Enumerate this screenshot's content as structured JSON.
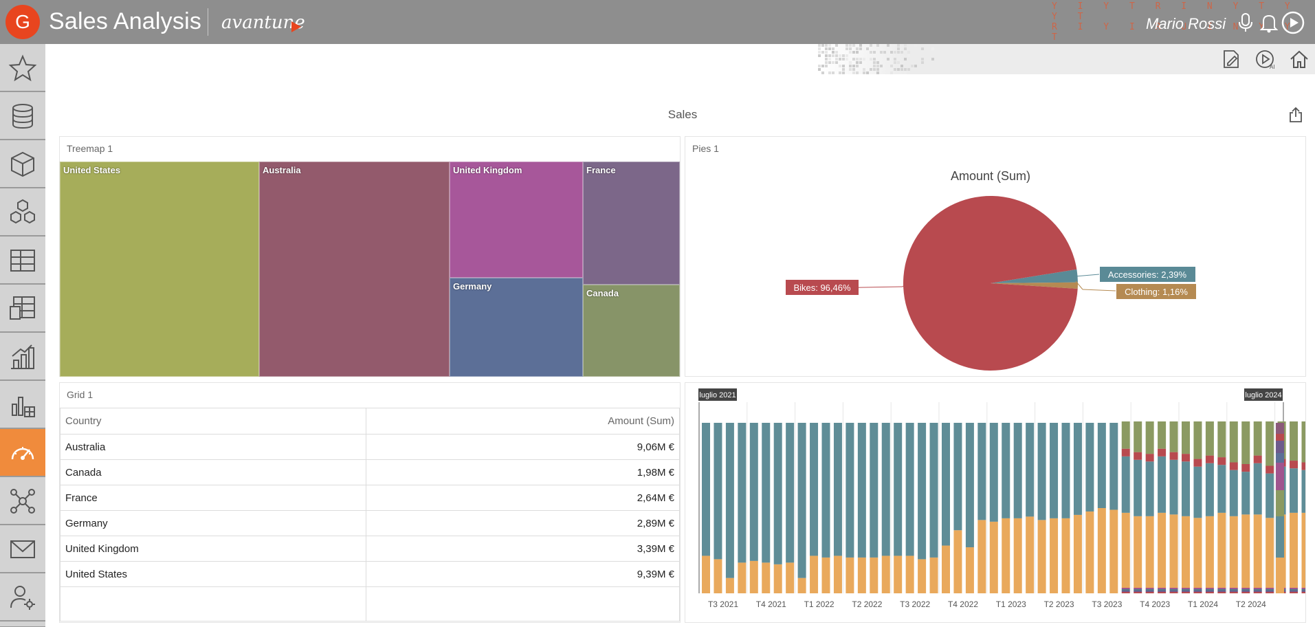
{
  "app": {
    "logo_letter": "G",
    "title": "Sales Analysis",
    "brand": "avantune",
    "user_name": "Mario Rossi",
    "accent_color": "#e8451f",
    "active_color": "#f08b3c"
  },
  "topbar_icons": [
    "microphone-icon",
    "bell-icon",
    "play-ai-icon"
  ],
  "sidebar": {
    "items": [
      {
        "icon": "star-icon"
      },
      {
        "icon": "database-icon"
      },
      {
        "icon": "cube-icon"
      },
      {
        "icon": "cubes-icon"
      },
      {
        "icon": "table-icon"
      },
      {
        "icon": "pivot-table-icon"
      },
      {
        "icon": "bar-chart-icon"
      },
      {
        "icon": "chart-grid-icon"
      },
      {
        "icon": "dashboard-gauge-icon",
        "active": true
      },
      {
        "icon": "network-icon"
      },
      {
        "icon": "mail-icon"
      },
      {
        "icon": "user-settings-icon"
      }
    ]
  },
  "subbar_icons": [
    "edit-document-icon",
    "play-ai-icon",
    "home-icon"
  ],
  "dashboard": {
    "title": "Sales"
  },
  "treemap": {
    "title": "Treemap 1",
    "cells": [
      {
        "label": "United States",
        "color": "#a6ad5a"
      },
      {
        "label": "Australia",
        "color": "#935a6c"
      },
      {
        "label": "United Kingdom",
        "color": "#a7579a"
      },
      {
        "label": "Germany",
        "color": "#5c6f97"
      },
      {
        "label": "France",
        "color": "#7c6789"
      },
      {
        "label": "Canada",
        "color": "#879468"
      }
    ]
  },
  "pies": {
    "title": "Pies 1",
    "chart_data": {
      "type": "pie",
      "title": "Amount (Sum)",
      "slices": [
        {
          "label": "Bikes: 96,46%",
          "value": 96.46,
          "color": "#b84a4f"
        },
        {
          "label": "Accessories: 2,39%",
          "value": 2.39,
          "color": "#5a8a96"
        },
        {
          "label": "Clothing: 1,16%",
          "value": 1.16,
          "color": "#b58a52"
        }
      ]
    }
  },
  "grid": {
    "title": "Grid 1",
    "columns": [
      "Country",
      "Amount (Sum)"
    ],
    "rows": [
      [
        "Australia",
        "9,06M €"
      ],
      [
        "Canada",
        "1,98M €"
      ],
      [
        "France",
        "2,64M €"
      ],
      [
        "Germany",
        "2,89M €"
      ],
      [
        "United Kingdom",
        "3,39M €"
      ],
      [
        "United States",
        "9,39M €"
      ]
    ]
  },
  "bars": {
    "range_start": "luglio 2021",
    "range_end": "luglio 2024",
    "chart_data": {
      "type": "bar",
      "stacked": true,
      "categories": [
        "T3 2021",
        "T4 2021",
        "T1 2022",
        "T2 2022",
        "T3 2022",
        "T4 2022",
        "T1 2023",
        "T2 2023",
        "T3 2023",
        "T4 2023",
        "T1 2024",
        "T2 2024"
      ],
      "colors": {
        "orange": "#e9a95c",
        "teal": "#5f8d97",
        "green": "#8b9a62",
        "red": "#b84a4f",
        "purple": "#6d5a8c"
      },
      "orange_share": [
        0.22,
        0.2,
        0.09,
        0.18,
        0.19,
        0.18,
        0.17,
        0.18,
        0.09,
        0.22,
        0.21,
        0.22,
        0.21,
        0.21,
        0.21,
        0.22,
        0.22,
        0.22,
        0.2,
        0.21,
        0.28,
        0.37,
        0.27,
        0.43,
        0.42,
        0.44,
        0.44,
        0.45,
        0.43,
        0.44,
        0.44,
        0.46,
        0.48,
        0.5,
        0.49,
        0.44,
        0.42,
        0.42,
        0.44,
        0.43,
        0.42,
        0.41,
        0.42,
        0.44,
        0.42,
        0.43,
        0.43,
        0.41,
        0.43,
        0.44,
        0.44
      ],
      "green_share": [
        0,
        0,
        0,
        0,
        0,
        0,
        0,
        0,
        0,
        0,
        0,
        0,
        0,
        0,
        0,
        0,
        0,
        0,
        0,
        0,
        0,
        0,
        0,
        0,
        0,
        0,
        0,
        0,
        0,
        0,
        0,
        0,
        0,
        0,
        0,
        0.16,
        0.18,
        0.19,
        0.16,
        0.18,
        0.19,
        0.22,
        0.2,
        0.21,
        0.24,
        0.25,
        0.2,
        0.26,
        0.22,
        0.23,
        0.24
      ]
    }
  }
}
